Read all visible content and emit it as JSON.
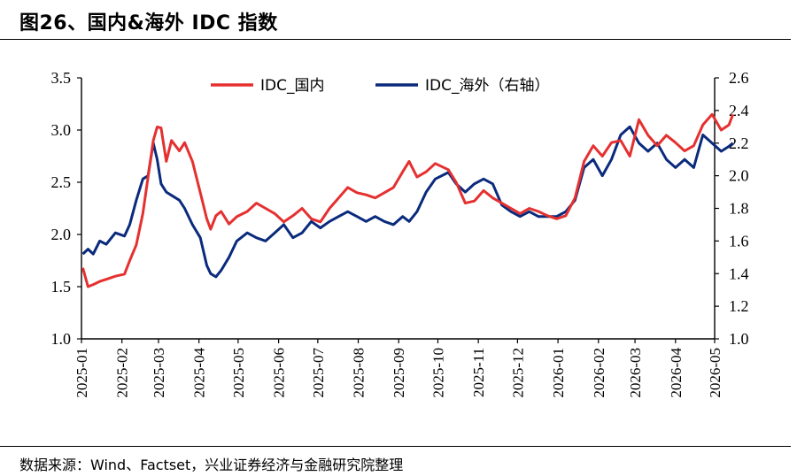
{
  "page": {
    "title": "图26、国内&海外 IDC 指数",
    "source": "数据来源：Wind、Factset，兴业证券经济与金融研究院整理"
  },
  "colors": {
    "domestic": "#e53030",
    "overseas": "#0a2a7c"
  },
  "chart_data": {
    "type": "line",
    "title": "",
    "legend_position": "top-center",
    "grid": false,
    "y_left": {
      "min": 1.0,
      "max": 3.5,
      "ticks": [
        "1.0",
        "1.5",
        "2.0",
        "2.5",
        "3.0",
        "3.5"
      ]
    },
    "y_right": {
      "min": 1.0,
      "max": 2.6,
      "ticks": [
        "1.0",
        "1.2",
        "1.4",
        "1.6",
        "1.8",
        "2.0",
        "2.2",
        "2.4",
        "2.6"
      ]
    },
    "x": {
      "start": "2025-01",
      "end": "2026-05",
      "tick_labels": [
        "2025-01",
        "2025-02",
        "2025-03",
        "2025-04",
        "2025-05",
        "2025-06",
        "2025-07",
        "2025-08",
        "2025-09",
        "2025-10",
        "2025-11",
        "2025-12",
        "2026-01",
        "2026-02",
        "2026-03",
        "2026-04",
        "2026-05"
      ]
    },
    "series": [
      {
        "name": "IDC_国内",
        "axis": "left",
        "points": [
          [
            "2025-01-02",
            1.68
          ],
          [
            "2025-01-06",
            1.5
          ],
          [
            "2025-01-10",
            1.52
          ],
          [
            "2025-01-15",
            1.55
          ],
          [
            "2025-01-20",
            1.57
          ],
          [
            "2025-01-27",
            1.6
          ],
          [
            "2025-02-03",
            1.62
          ],
          [
            "2025-02-07",
            1.75
          ],
          [
            "2025-02-12",
            1.9
          ],
          [
            "2025-02-17",
            2.2
          ],
          [
            "2025-02-21",
            2.55
          ],
          [
            "2025-02-25",
            2.9
          ],
          [
            "2025-02-28",
            3.03
          ],
          [
            "2025-03-03",
            3.02
          ],
          [
            "2025-03-07",
            2.7
          ],
          [
            "2025-03-11",
            2.9
          ],
          [
            "2025-03-17",
            2.8
          ],
          [
            "2025-03-21",
            2.88
          ],
          [
            "2025-03-27",
            2.7
          ],
          [
            "2025-04-02",
            2.4
          ],
          [
            "2025-04-07",
            2.15
          ],
          [
            "2025-04-10",
            2.05
          ],
          [
            "2025-04-14",
            2.18
          ],
          [
            "2025-04-18",
            2.22
          ],
          [
            "2025-04-24",
            2.1
          ],
          [
            "2025-04-30",
            2.17
          ],
          [
            "2025-05-08",
            2.22
          ],
          [
            "2025-05-15",
            2.3
          ],
          [
            "2025-05-22",
            2.25
          ],
          [
            "2025-05-29",
            2.2
          ],
          [
            "2025-06-05",
            2.12
          ],
          [
            "2025-06-12",
            2.18
          ],
          [
            "2025-06-19",
            2.25
          ],
          [
            "2025-06-26",
            2.15
          ],
          [
            "2025-07-03",
            2.12
          ],
          [
            "2025-07-10",
            2.25
          ],
          [
            "2025-07-17",
            2.35
          ],
          [
            "2025-07-24",
            2.45
          ],
          [
            "2025-07-31",
            2.4
          ],
          [
            "2025-08-07",
            2.38
          ],
          [
            "2025-08-14",
            2.35
          ],
          [
            "2025-08-21",
            2.4
          ],
          [
            "2025-08-28",
            2.45
          ],
          [
            "2025-09-04",
            2.6
          ],
          [
            "2025-09-09",
            2.7
          ],
          [
            "2025-09-15",
            2.55
          ],
          [
            "2025-09-22",
            2.6
          ],
          [
            "2025-09-29",
            2.68
          ],
          [
            "2025-10-09",
            2.62
          ],
          [
            "2025-10-15",
            2.5
          ],
          [
            "2025-10-22",
            2.3
          ],
          [
            "2025-10-29",
            2.32
          ],
          [
            "2025-11-05",
            2.42
          ],
          [
            "2025-11-12",
            2.35
          ],
          [
            "2025-11-19",
            2.3
          ],
          [
            "2025-11-26",
            2.25
          ],
          [
            "2025-12-03",
            2.2
          ],
          [
            "2025-12-10",
            2.25
          ],
          [
            "2025-12-17",
            2.22
          ],
          [
            "2025-12-24",
            2.18
          ],
          [
            "2025-12-31",
            2.15
          ],
          [
            "2026-01-07",
            2.18
          ],
          [
            "2026-01-14",
            2.35
          ],
          [
            "2026-01-21",
            2.7
          ],
          [
            "2026-01-28",
            2.85
          ],
          [
            "2026-02-04",
            2.75
          ],
          [
            "2026-02-11",
            2.88
          ],
          [
            "2026-02-18",
            2.9
          ],
          [
            "2026-02-25",
            2.75
          ],
          [
            "2026-03-04",
            3.1
          ],
          [
            "2026-03-11",
            2.95
          ],
          [
            "2026-03-18",
            2.85
          ],
          [
            "2026-03-25",
            2.95
          ],
          [
            "2026-04-01",
            2.88
          ],
          [
            "2026-04-08",
            2.8
          ],
          [
            "2026-04-15",
            2.85
          ],
          [
            "2026-04-22",
            3.05
          ],
          [
            "2026-04-29",
            3.15
          ],
          [
            "2026-05-06",
            3.0
          ],
          [
            "2026-05-12",
            3.05
          ],
          [
            "2026-05-15",
            3.15
          ]
        ]
      },
      {
        "name": "IDC_海外（右轴）",
        "axis": "right",
        "points": [
          [
            "2025-01-02",
            1.52
          ],
          [
            "2025-01-06",
            1.55
          ],
          [
            "2025-01-10",
            1.52
          ],
          [
            "2025-01-15",
            1.6
          ],
          [
            "2025-01-20",
            1.58
          ],
          [
            "2025-01-27",
            1.65
          ],
          [
            "2025-02-03",
            1.63
          ],
          [
            "2025-02-07",
            1.7
          ],
          [
            "2025-02-12",
            1.85
          ],
          [
            "2025-02-17",
            1.98
          ],
          [
            "2025-02-21",
            2.0
          ],
          [
            "2025-02-25",
            2.2
          ],
          [
            "2025-02-28",
            2.1
          ],
          [
            "2025-03-03",
            1.95
          ],
          [
            "2025-03-07",
            1.9
          ],
          [
            "2025-03-11",
            1.88
          ],
          [
            "2025-03-17",
            1.85
          ],
          [
            "2025-03-21",
            1.8
          ],
          [
            "2025-03-27",
            1.7
          ],
          [
            "2025-04-02",
            1.62
          ],
          [
            "2025-04-07",
            1.45
          ],
          [
            "2025-04-10",
            1.4
          ],
          [
            "2025-04-14",
            1.38
          ],
          [
            "2025-04-18",
            1.42
          ],
          [
            "2025-04-24",
            1.5
          ],
          [
            "2025-04-30",
            1.6
          ],
          [
            "2025-05-08",
            1.65
          ],
          [
            "2025-05-15",
            1.62
          ],
          [
            "2025-05-22",
            1.6
          ],
          [
            "2025-05-29",
            1.65
          ],
          [
            "2025-06-05",
            1.7
          ],
          [
            "2025-06-12",
            1.62
          ],
          [
            "2025-06-19",
            1.65
          ],
          [
            "2025-06-26",
            1.72
          ],
          [
            "2025-07-03",
            1.68
          ],
          [
            "2025-07-10",
            1.72
          ],
          [
            "2025-07-17",
            1.75
          ],
          [
            "2025-07-24",
            1.78
          ],
          [
            "2025-07-31",
            1.75
          ],
          [
            "2025-08-07",
            1.72
          ],
          [
            "2025-08-14",
            1.75
          ],
          [
            "2025-08-21",
            1.72
          ],
          [
            "2025-08-28",
            1.7
          ],
          [
            "2025-09-04",
            1.75
          ],
          [
            "2025-09-09",
            1.72
          ],
          [
            "2025-09-15",
            1.78
          ],
          [
            "2025-09-22",
            1.9
          ],
          [
            "2025-09-29",
            1.98
          ],
          [
            "2025-10-09",
            2.02
          ],
          [
            "2025-10-15",
            1.95
          ],
          [
            "2025-10-22",
            1.9
          ],
          [
            "2025-10-29",
            1.95
          ],
          [
            "2025-11-05",
            1.98
          ],
          [
            "2025-11-12",
            1.95
          ],
          [
            "2025-11-19",
            1.82
          ],
          [
            "2025-11-26",
            1.78
          ],
          [
            "2025-12-03",
            1.75
          ],
          [
            "2025-12-10",
            1.78
          ],
          [
            "2025-12-17",
            1.75
          ],
          [
            "2025-12-24",
            1.75
          ],
          [
            "2025-12-31",
            1.75
          ],
          [
            "2026-01-07",
            1.78
          ],
          [
            "2026-01-14",
            1.85
          ],
          [
            "2026-01-21",
            2.05
          ],
          [
            "2026-01-28",
            2.1
          ],
          [
            "2026-02-04",
            2.0
          ],
          [
            "2026-02-11",
            2.1
          ],
          [
            "2026-02-18",
            2.25
          ],
          [
            "2026-02-25",
            2.3
          ],
          [
            "2026-03-04",
            2.2
          ],
          [
            "2026-03-11",
            2.15
          ],
          [
            "2026-03-18",
            2.2
          ],
          [
            "2026-03-25",
            2.1
          ],
          [
            "2026-04-01",
            2.05
          ],
          [
            "2026-04-08",
            2.1
          ],
          [
            "2026-04-15",
            2.05
          ],
          [
            "2026-04-22",
            2.25
          ],
          [
            "2026-04-29",
            2.2
          ],
          [
            "2026-05-06",
            2.15
          ],
          [
            "2026-05-12",
            2.18
          ],
          [
            "2026-05-15",
            2.2
          ]
        ]
      }
    ]
  }
}
